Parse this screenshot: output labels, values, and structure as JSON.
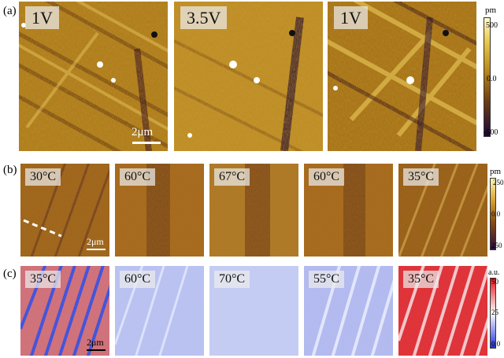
{
  "figure": {
    "rows": [
      {
        "label": "(a)",
        "panels": [
          "1V",
          "3.5V",
          "1V"
        ],
        "scalebar": "2μm",
        "colorbar": {
          "unit": "pm",
          "ticks": [
            "500",
            "0.0",
            "-500"
          ]
        }
      },
      {
        "label": "(b)",
        "panels": [
          "30°C",
          "60°C",
          "67°C",
          "60°C",
          "35°C"
        ],
        "scalebar": "2μm",
        "colorbar": {
          "unit": "pm",
          "ticks": [
            "250",
            "0.0",
            "250"
          ]
        }
      },
      {
        "label": "(c)",
        "panels": [
          "35°C",
          "60°C",
          "70°C",
          "55°C",
          "35°C"
        ],
        "scalebar": "2μm",
        "colorbar": {
          "unit": "a.u.",
          "ticks": [
            "50",
            "25",
            "0.0"
          ]
        }
      }
    ]
  }
}
